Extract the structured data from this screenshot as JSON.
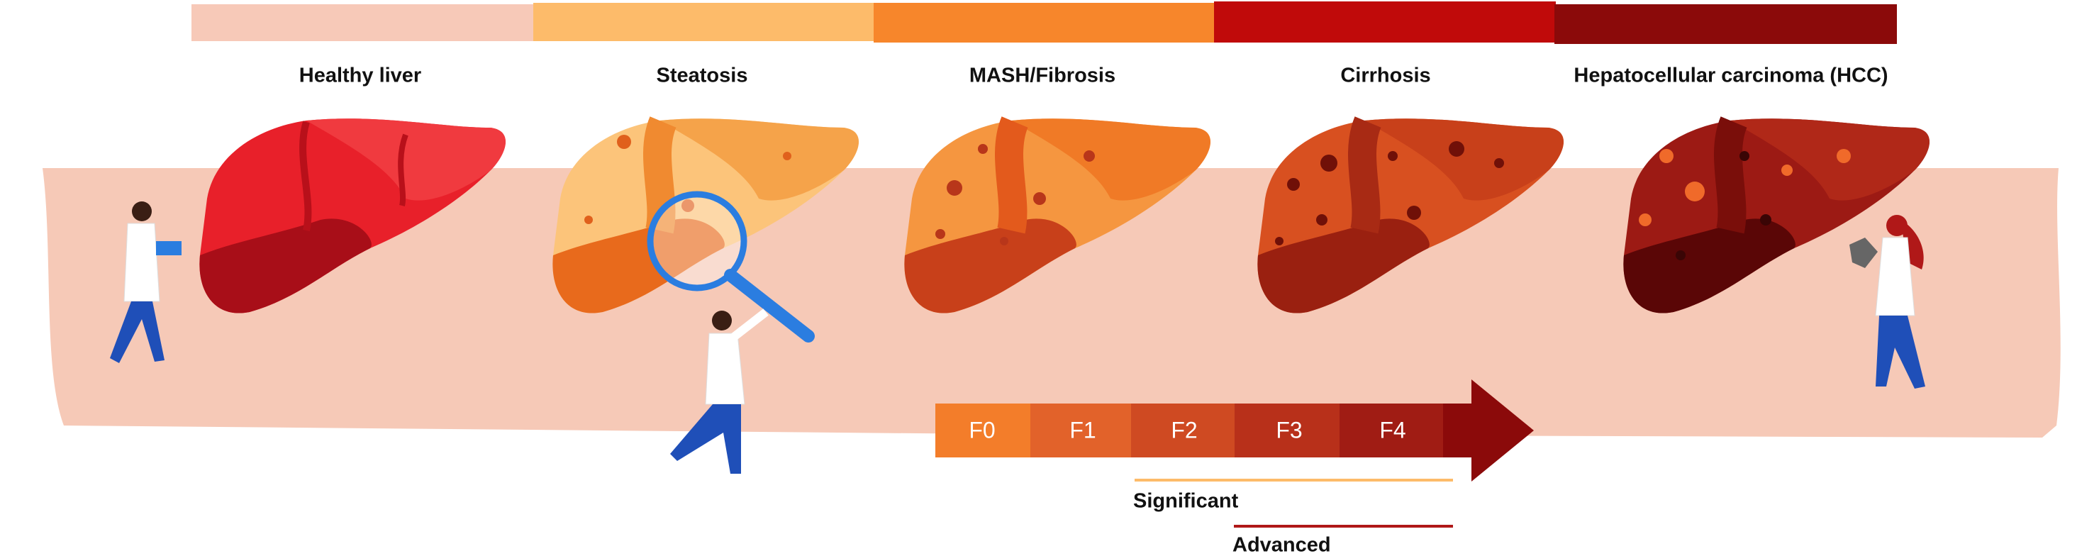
{
  "stages": [
    "Healthy liver",
    "Steatosis",
    "MASH/Fibrosis",
    "Cirrhosis",
    "Hepatocellular carcinoma (HCC)"
  ],
  "fibrosis_scale": {
    "stages": [
      "F0",
      "F1",
      "F2",
      "F3",
      "F4"
    ],
    "significant": "Significant",
    "advanced": "Advanced"
  }
}
